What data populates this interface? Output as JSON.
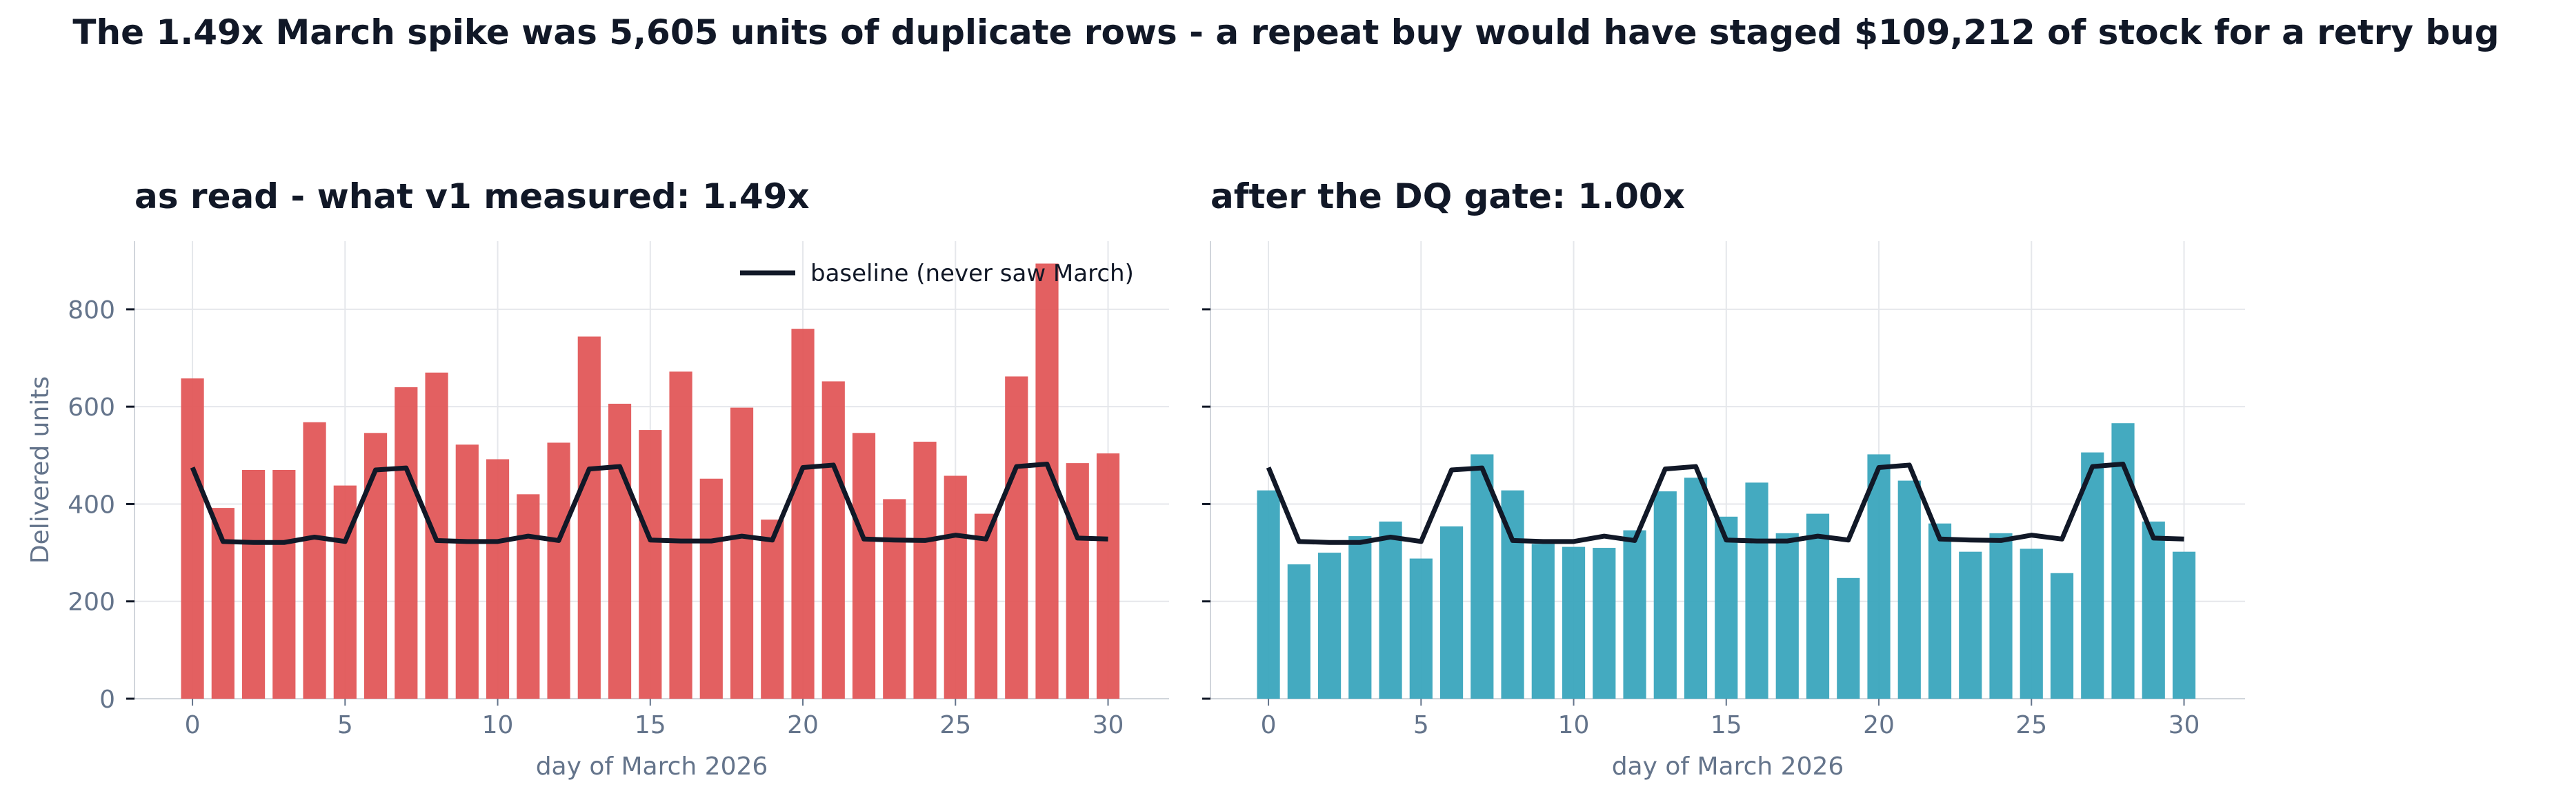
{
  "suptitle": "The 1.49x March spike was 5,605 units of duplicate rows - a repeat buy would have staged $109,212 of stock for a retry bug",
  "colors": {
    "as_read": "#e15759",
    "after_gate": "#3aa5bd",
    "baseline": "#111827",
    "grid": "#e5e7eb",
    "tick": "#64748b"
  },
  "legend": {
    "baseline_label": "baseline (never saw March)",
    "placement": "upper right of left panel"
  },
  "chart_data": [
    {
      "type": "bar",
      "title": "as read - what v1 measured: 1.49x",
      "xlabel": "day of March 2026",
      "ylabel": "Delivered units",
      "x_ticks": [
        0,
        5,
        10,
        15,
        20,
        25,
        30
      ],
      "y_ticks": [
        0,
        200,
        400,
        600,
        800
      ],
      "xlim": [
        -1.9,
        32
      ],
      "ylim": [
        0,
        940
      ],
      "grid": true,
      "x": [
        0,
        1,
        2,
        3,
        4,
        5,
        6,
        7,
        8,
        9,
        10,
        11,
        12,
        13,
        14,
        15,
        16,
        17,
        18,
        19,
        20,
        21,
        22,
        23,
        24,
        25,
        26,
        27,
        28,
        29,
        30
      ],
      "series": [
        {
          "name": "",
          "kind": "bar",
          "values": [
            658,
            392,
            470,
            470,
            568,
            438,
            546,
            640,
            670,
            522,
            492,
            420,
            526,
            744,
            606,
            552,
            672,
            452,
            598,
            368,
            760,
            652,
            546,
            410,
            528,
            458,
            380,
            662,
            894,
            484,
            504
          ]
        },
        {
          "name": "baseline (never saw March)",
          "kind": "line",
          "values": [
            475,
            323,
            321,
            321,
            332,
            323,
            470,
            474,
            325,
            323,
            323,
            334,
            325,
            472,
            477,
            326,
            324,
            324,
            334,
            326,
            475,
            480,
            328,
            326,
            325,
            336,
            328,
            477,
            482,
            330,
            328
          ]
        }
      ]
    },
    {
      "type": "bar",
      "title": "after the DQ gate: 1.00x",
      "xlabel": "day of March 2026",
      "ylabel": "",
      "x_ticks": [
        0,
        5,
        10,
        15,
        20,
        25,
        30
      ],
      "y_ticks": [
        0,
        200,
        400,
        600,
        800
      ],
      "xlim": [
        -1.9,
        32
      ],
      "ylim": [
        0,
        940
      ],
      "grid": true,
      "x": [
        0,
        1,
        2,
        3,
        4,
        5,
        6,
        7,
        8,
        9,
        10,
        11,
        12,
        13,
        14,
        15,
        16,
        17,
        18,
        19,
        20,
        21,
        22,
        23,
        24,
        25,
        26,
        27,
        28,
        29,
        30
      ],
      "series": [
        {
          "name": "",
          "kind": "bar",
          "values": [
            428,
            276,
            300,
            334,
            364,
            288,
            354,
            502,
            428,
            318,
            312,
            310,
            346,
            426,
            454,
            374,
            444,
            340,
            380,
            248,
            502,
            448,
            360,
            302,
            340,
            308,
            258,
            506,
            566,
            364,
            302
          ]
        },
        {
          "name": "baseline (never saw March)",
          "kind": "line",
          "values": [
            475,
            323,
            321,
            321,
            332,
            323,
            470,
            474,
            325,
            323,
            323,
            334,
            325,
            472,
            477,
            326,
            324,
            324,
            334,
            326,
            475,
            480,
            328,
            326,
            325,
            336,
            328,
            477,
            482,
            330,
            328
          ]
        }
      ]
    }
  ]
}
